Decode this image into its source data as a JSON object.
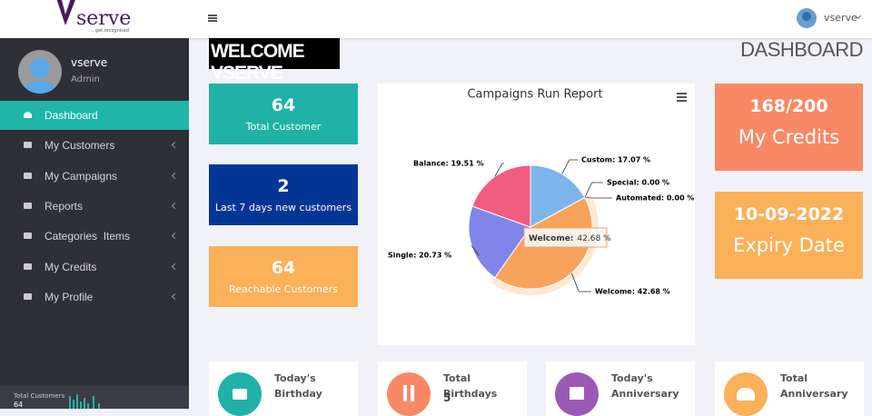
{
  "header": {
    "logo": "serve",
    "tagline": "...get recognised",
    "user": "vserve"
  },
  "sidebar": {
    "user": {
      "name": "vserve",
      "role": "Admin"
    },
    "menu": [
      "Dashboard",
      "My Customers",
      "My Campaigns",
      "Reports",
      "Categories  Items",
      "My Credits",
      "My Profile"
    ],
    "footer": {
      "label": "Total Customers",
      "value": 64
    }
  },
  "page": {
    "welcome": "WELCOME VSERVE",
    "title": "DASHBOARD"
  },
  "stats": [
    {
      "value": 64,
      "label": "Total Customer"
    },
    {
      "value": 2,
      "label": "Last 7 days new customers"
    },
    {
      "value": 64,
      "label": "Reachable Customers"
    }
  ],
  "credits": [
    {
      "value": "168/200",
      "label": "My Credits"
    },
    {
      "value": "10-09-2022",
      "label": "Expiry Date"
    }
  ],
  "cards": [
    {
      "label": "Today's Birthday"
    },
    {
      "label": "Total Birthdays",
      "value": 5
    },
    {
      "label": "Today's Anniversary"
    },
    {
      "label": "Total Anniversary"
    }
  ],
  "chart_data": {
    "type": "pie",
    "title": "Campaigns Run Report",
    "categories": [
      "Custom",
      "Special",
      "Automated",
      "Welcome",
      "Single",
      "Balance"
    ],
    "values": [
      17.07,
      0.0,
      0.0,
      42.68,
      20.73,
      19.51
    ],
    "value_labels": [
      "Custom: 17.07 %",
      "Special: 0.00 %",
      "Automated: 0.00 %",
      "Welcome: 42.68 %",
      "Single: 20.73 %",
      "Balance: 19.51 %"
    ],
    "colors": [
      "#7cb5ec",
      "#434348",
      "#90ed7d",
      "#f7a35c",
      "#8085e9",
      "#f15c80"
    ],
    "tooltip": {
      "name": "Welcome:",
      "value": "42.68 %"
    }
  }
}
